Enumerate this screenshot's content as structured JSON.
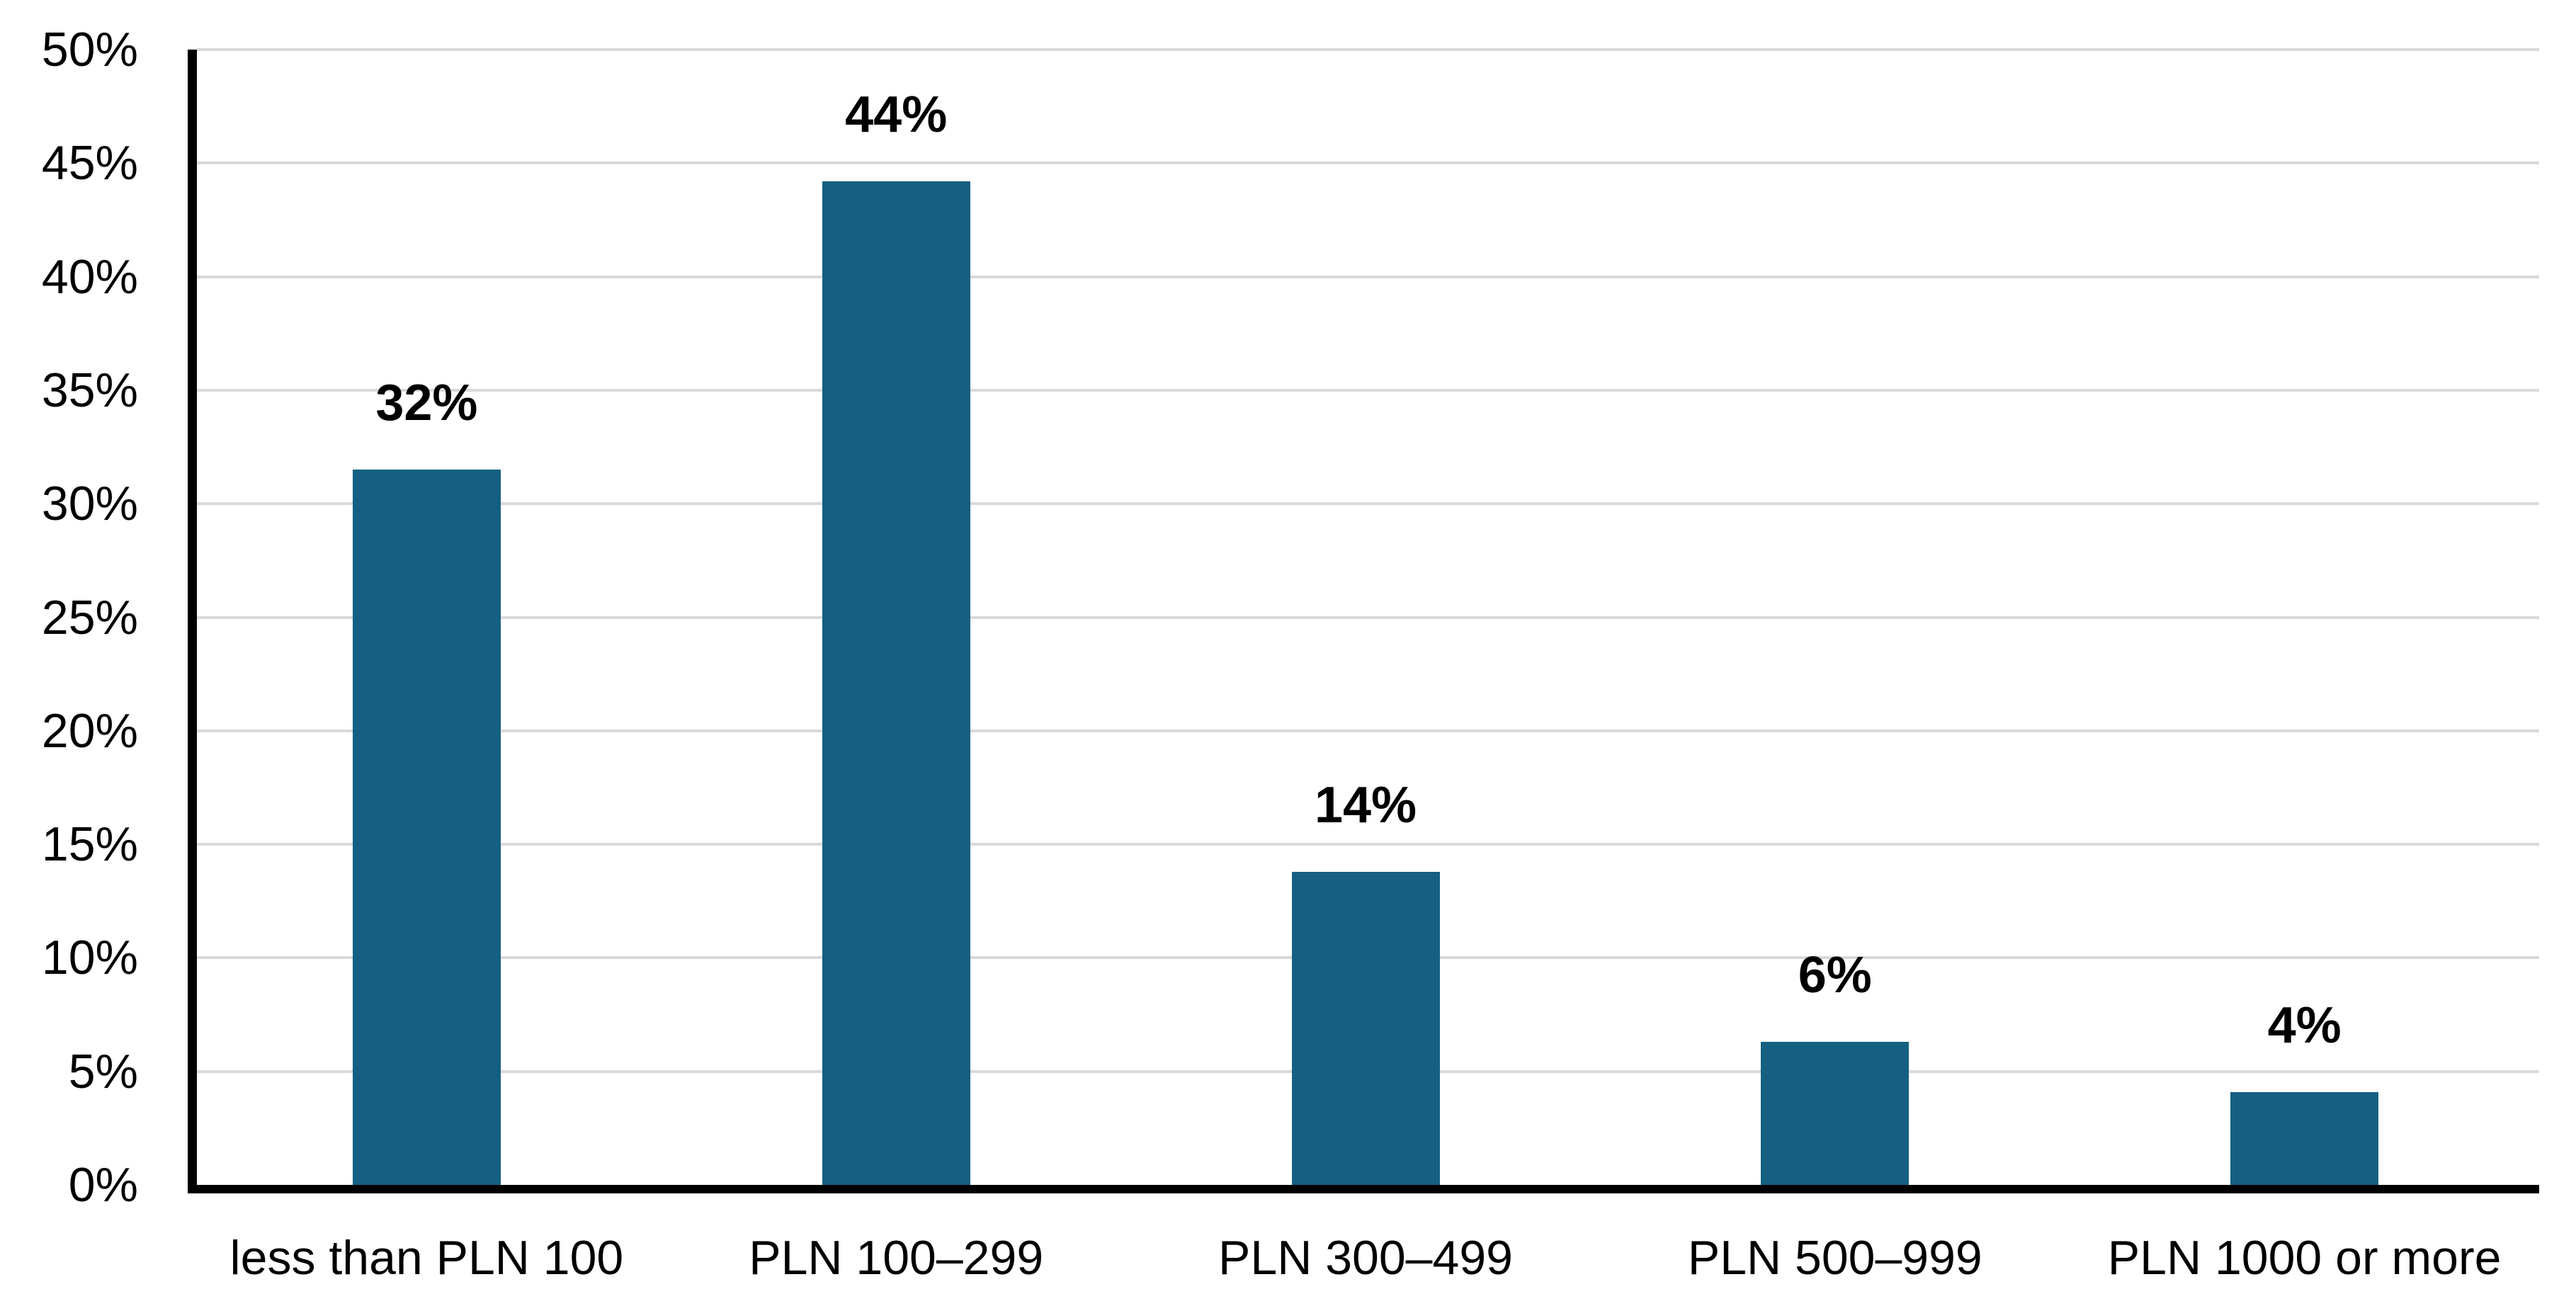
{
  "chart_data": {
    "type": "bar",
    "title": "",
    "xlabel": "",
    "ylabel": "",
    "categories": [
      "less than PLN 100",
      "PLN 100–299",
      "PLN 300–499",
      "PLN 500–999",
      "PLN 1000 or more"
    ],
    "values": [
      31.5,
      44.2,
      13.8,
      6.3,
      4.1
    ],
    "data_labels": [
      "32%",
      "44%",
      "14%",
      "6%",
      "4%"
    ],
    "ylim": [
      0,
      50
    ],
    "ytick_step": 5,
    "ytick_labels": [
      "0%",
      "5%",
      "10%",
      "15%",
      "20%",
      "25%",
      "30%",
      "35%",
      "40%",
      "45%",
      "50%"
    ],
    "grid": true,
    "legend": "none",
    "bar_color": "#156082",
    "gridline_color": "#D9D9D9",
    "axis_color": "#000000",
    "label_color": "#000000"
  }
}
